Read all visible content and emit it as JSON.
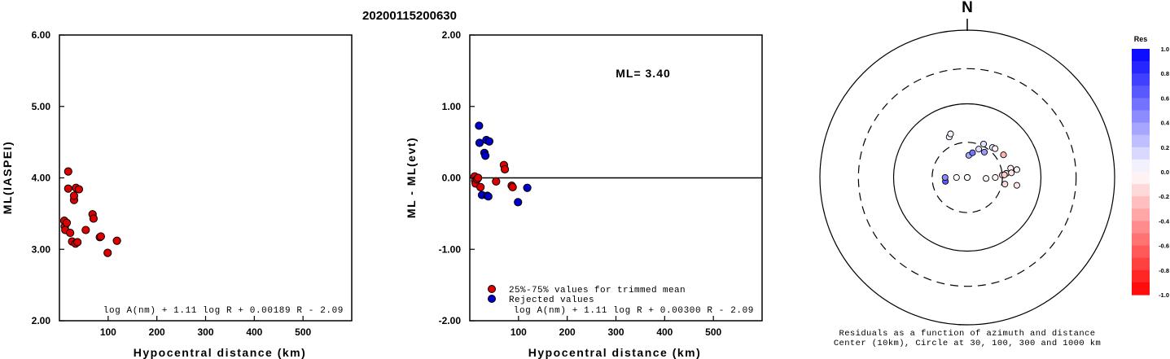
{
  "page_title": "20200115200630",
  "chart_data": [
    {
      "type": "scatter",
      "id": "ml-vs-distance",
      "ylabel": "ML(IASPEI)",
      "xlabel": "Hypocentral distance (km)",
      "xlim": [
        0,
        600
      ],
      "ylim": [
        2.0,
        6.0
      ],
      "xticks": [
        "100",
        "200",
        "300",
        "400",
        "500"
      ],
      "xtick_values": [
        100,
        200,
        300,
        400,
        500
      ],
      "yticks": [
        "2.00",
        "3.00",
        "4.00",
        "5.00",
        "6.00"
      ],
      "ytick_values": [
        2,
        3,
        4,
        5,
        6
      ],
      "formula": "log A(nm) + 1.11 log R + 0.00189 R - 2.09",
      "colors": {
        "point": "#dd0000"
      },
      "points": [
        [
          10,
          3.4
        ],
        [
          11,
          3.32
        ],
        [
          12,
          3.27
        ],
        [
          15,
          3.37
        ],
        [
          18,
          3.85
        ],
        [
          18,
          4.09
        ],
        [
          22,
          3.23
        ],
        [
          26,
          3.11
        ],
        [
          30,
          3.69
        ],
        [
          30,
          3.75
        ],
        [
          33,
          3.08
        ],
        [
          34,
          3.86
        ],
        [
          37,
          3.1
        ],
        [
          40,
          3.84
        ],
        [
          54,
          3.27
        ],
        [
          68,
          3.49
        ],
        [
          70,
          3.43
        ],
        [
          83,
          3.17
        ],
        [
          85,
          3.18
        ],
        [
          99,
          2.95
        ],
        [
          118,
          3.12
        ]
      ]
    },
    {
      "type": "scatter",
      "id": "residual-vs-distance",
      "ylabel": "ML - ML(evt)",
      "xlabel": "Hypocentral distance (km)",
      "xlim": [
        0,
        600
      ],
      "ylim": [
        -2.0,
        2.0
      ],
      "xticks": [
        "100",
        "200",
        "300",
        "400",
        "500"
      ],
      "xtick_values": [
        100,
        200,
        300,
        400,
        500
      ],
      "yticks": [
        "-2.00",
        "-1.00",
        "0.00",
        "1.00",
        "2.00"
      ],
      "ytick_values": [
        -2,
        -1,
        0,
        1,
        2
      ],
      "annotation": "ML= 3.40",
      "formula": "log A(nm) + 1.11 log R + 0.00300 R - 2.09",
      "legend": [
        {
          "label": "25%-75% values for trimmed mean",
          "color": "#dd0000"
        },
        {
          "label": "Rejected values",
          "color": "#0000cc"
        }
      ],
      "series": [
        {
          "name": "25%-75% values for trimmed mean",
          "color": "#dd0000",
          "points": [
            [
              10,
              0.02
            ],
            [
              11,
              -0.04
            ],
            [
              12,
              -0.08
            ],
            [
              15,
              -0.02
            ],
            [
              17,
              0.0
            ],
            [
              22,
              -0.13
            ],
            [
              54,
              -0.05
            ],
            [
              70,
              0.18
            ],
            [
              72,
              0.12
            ],
            [
              86,
              -0.11
            ],
            [
              88,
              -0.13
            ]
          ]
        },
        {
          "name": "Rejected values",
          "color": "#0000cc",
          "points": [
            [
              19,
              0.73
            ],
            [
              20,
              0.49
            ],
            [
              25,
              -0.24
            ],
            [
              30,
              0.35
            ],
            [
              32,
              0.31
            ],
            [
              34,
              0.53
            ],
            [
              36,
              -0.25
            ],
            [
              38,
              -0.26
            ],
            [
              40,
              0.51
            ],
            [
              99,
              -0.34
            ],
            [
              118,
              -0.14
            ]
          ]
        }
      ]
    },
    {
      "type": "polar-scatter",
      "id": "azimuth-residuals",
      "north_label": "N",
      "caption_line1": "Residuals as a function of azimuth and distance",
      "caption_line2": "Center (10km), Circle at 30, 100, 300 and 1000 km",
      "colorbar_title": "Res",
      "colorbar_ticks": [
        "1.0",
        "0.8",
        "0.6",
        "0.4",
        "0.2",
        "0.0",
        "-0.2",
        "-0.4",
        "-0.6",
        "-0.8",
        "-1.0"
      ],
      "colorbar_values": [
        1.0,
        0.8,
        0.6,
        0.4,
        0.2,
        0.0,
        -0.2,
        -0.4,
        -0.6,
        -0.8,
        -1.0
      ],
      "rings_km": [
        30,
        100,
        300,
        1000
      ],
      "ring_styles": [
        "dashed",
        "solid",
        "dashed",
        "solid"
      ],
      "stations": [
        {
          "az": 336,
          "dist": 40,
          "res": 0.03
        },
        {
          "az": 339,
          "dist": 43,
          "res": 0.05
        },
        {
          "az": 4,
          "dist": 20,
          "res": 0.35
        },
        {
          "az": 12,
          "dist": 22,
          "res": 0.55
        },
        {
          "az": 22,
          "dist": 26,
          "res": 0.12
        },
        {
          "az": 26,
          "dist": 32,
          "res": 0.12
        },
        {
          "az": 34,
          "dist": 26,
          "res": 0.4
        },
        {
          "az": 40,
          "dist": 34,
          "res": 0.12
        },
        {
          "az": 44,
          "dist": 35,
          "res": -0.05
        },
        {
          "az": 58,
          "dist": 38,
          "res": -0.3
        },
        {
          "az": 78,
          "dist": 40,
          "res": -0.06
        },
        {
          "az": 81,
          "dist": 48,
          "res": -0.05
        },
        {
          "az": 84,
          "dist": 34,
          "res": -0.1
        },
        {
          "az": 84,
          "dist": 40,
          "res": -0.1
        },
        {
          "az": 86,
          "dist": 30,
          "res": -0.15
        },
        {
          "az": 86,
          "dist": 32,
          "res": -0.2
        },
        {
          "az": 90,
          "dist": 24,
          "res": -0.05
        },
        {
          "az": 93,
          "dist": 18,
          "res": -0.05
        },
        {
          "az": 100,
          "dist": 33,
          "res": -0.15
        },
        {
          "az": 99,
          "dist": 48,
          "res": -0.1
        },
        {
          "az": 260,
          "dist": 20,
          "res": 0.65
        },
        {
          "az": 270,
          "dist": 20,
          "res": 0.45
        },
        {
          "az": 270,
          "dist": 14,
          "res": 0.0
        },
        {
          "az": 249,
          "dist": 6,
          "res": 0.0
        },
        {
          "az": 100,
          "dist": 5,
          "res": 0.0
        }
      ]
    }
  ]
}
